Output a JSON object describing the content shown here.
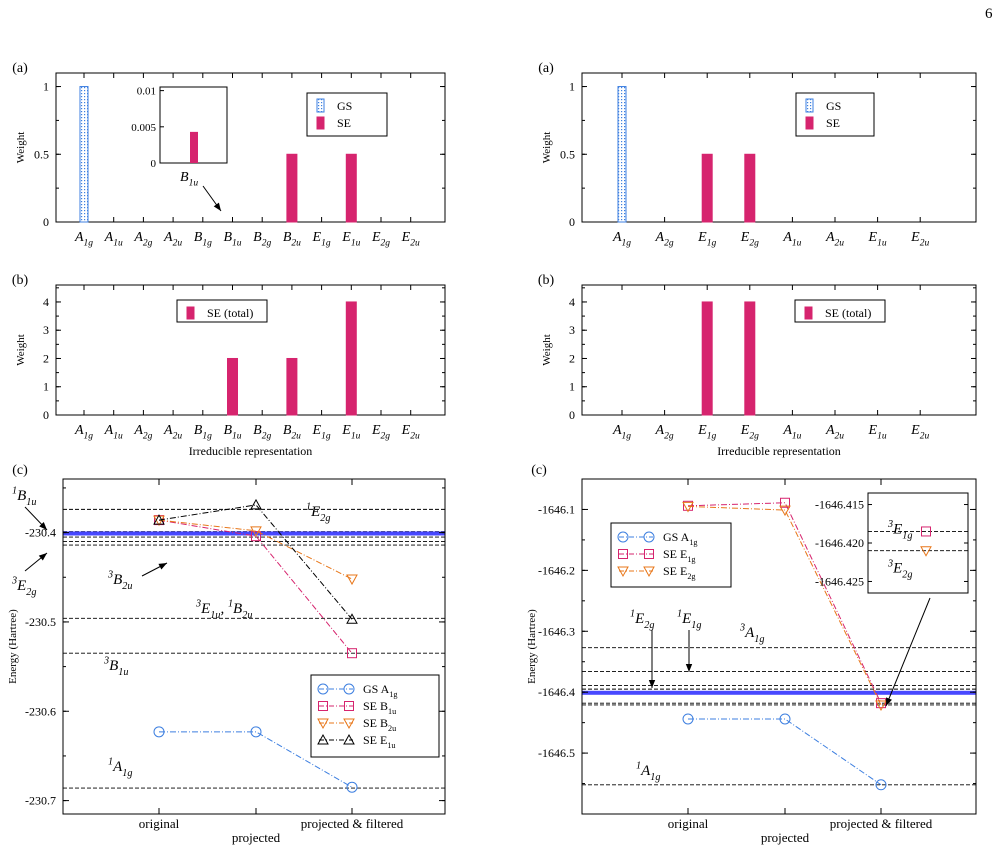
{
  "page": {
    "number": "6"
  },
  "colors": {
    "gs": "#3d7fe0",
    "gs_fill": "#cfe0f8",
    "se": "#d6246e",
    "orange": "#e8771a",
    "black": "#000000",
    "line": "#1a1aff"
  },
  "chart_data": [
    {
      "panel": "left-a",
      "type": "bar",
      "label": "(a)",
      "ylabel": "Weight",
      "categories": [
        "A_{1g}",
        "A_{1u}",
        "A_{2g}",
        "A_{2u}",
        "B_{1g}",
        "B_{1u}",
        "B_{2g}",
        "B_{2u}",
        "E_{1g}",
        "E_{1u}",
        "E_{2g}",
        "E_{2u}"
      ],
      "ylim": [
        0,
        1.1
      ],
      "yticks": [
        "0",
        "0.5",
        "1"
      ],
      "series": [
        {
          "name": "GS",
          "values": [
            1,
            0,
            0,
            0,
            0,
            0.004,
            0,
            0,
            0,
            0,
            0,
            0
          ]
        },
        {
          "name": "SE",
          "values": [
            0,
            0,
            0,
            0,
            0,
            0.004,
            0,
            0.5,
            0,
            0.5,
            0,
            0
          ]
        }
      ],
      "legend": "top-right",
      "inset": {
        "label": "B_{1u}",
        "ylim": [
          0,
          0.01
        ],
        "yticks": [
          "0",
          "0.005",
          "0.01"
        ],
        "value": 0.0043
      }
    },
    {
      "panel": "left-b",
      "type": "bar",
      "label": "(b)",
      "ylabel": "Weight",
      "xlabel": "Irreducible representation",
      "categories": [
        "A_{1g}",
        "A_{1u}",
        "A_{2g}",
        "A_{2u}",
        "B_{1g}",
        "B_{1u}",
        "B_{2g}",
        "B_{2u}",
        "E_{1g}",
        "E_{1u}",
        "E_{2g}",
        "E_{2u}"
      ],
      "ylim": [
        0,
        4.6
      ],
      "yticks": [
        "0",
        "1",
        "2",
        "3",
        "4"
      ],
      "series": [
        {
          "name": "SE (total)",
          "values": [
            0,
            0,
            0,
            0,
            0,
            2,
            0,
            2,
            0,
            4,
            0,
            0
          ]
        }
      ],
      "legend": "top-center"
    },
    {
      "panel": "left-c",
      "type": "line",
      "label": "(c)",
      "ylabel": "Energy (Hartree)",
      "categories": [
        "original",
        "projected",
        "projected & filtered"
      ],
      "ylim": [
        -230.715,
        -230.34
      ],
      "yticks": [
        "-230.4",
        "-230.5",
        "-230.6",
        "-230.7"
      ],
      "series": [
        {
          "name": "GS A_{1g}",
          "values": [
            -230.623,
            -230.623,
            -230.685
          ]
        },
        {
          "name": "SE B_{1u}",
          "values": [
            -230.386,
            -230.404,
            -230.535
          ]
        },
        {
          "name": "SE B_{2u}",
          "values": [
            -230.386,
            -230.398,
            -230.452
          ]
        },
        {
          "name": "SE E_{1u}",
          "values": [
            -230.386,
            -230.369,
            -230.497
          ]
        }
      ],
      "hlines": [
        -230.374,
        -230.399,
        -230.405,
        -230.41,
        -230.414,
        -230.496,
        -230.535,
        -230.686
      ],
      "thick_hline": -230.401,
      "level_labels": [
        "^{1}B_{1u}",
        "^{1}E_{2g}",
        "^{3}E_{2g}",
        "^{3}B_{2u}",
        "^{3}E_{1u}, ^{1}B_{2u}",
        "^{3}B_{1u}",
        "^{1}A_{1g}"
      ],
      "legend": "bottom-right"
    },
    {
      "panel": "right-a",
      "type": "bar",
      "label": "(a)",
      "ylabel": "Weight",
      "categories": [
        "A_{1g}",
        "A_{2g}",
        "E_{1g}",
        "E_{2g}",
        "A_{1u}",
        "A_{2u}",
        "E_{1u}",
        "E_{2u}"
      ],
      "ylim": [
        0,
        1.1
      ],
      "yticks": [
        "0",
        "0.5",
        "1"
      ],
      "series": [
        {
          "name": "GS",
          "values": [
            1,
            0,
            0,
            0,
            0,
            0,
            0,
            0
          ]
        },
        {
          "name": "SE",
          "values": [
            0,
            0,
            0.5,
            0.5,
            0,
            0,
            0,
            0
          ]
        }
      ],
      "legend": "top-right"
    },
    {
      "panel": "right-b",
      "type": "bar",
      "label": "(b)",
      "ylabel": "Weight",
      "xlabel": "Irreducible representation",
      "categories": [
        "A_{1g}",
        "A_{2g}",
        "E_{1g}",
        "E_{2g}",
        "A_{1u}",
        "A_{2u}",
        "E_{1u}",
        "E_{2u}"
      ],
      "ylim": [
        0,
        4.6
      ],
      "yticks": [
        "0",
        "1",
        "2",
        "3",
        "4"
      ],
      "series": [
        {
          "name": "SE (total)",
          "values": [
            0,
            0,
            4,
            4,
            0,
            0,
            0,
            0
          ]
        }
      ],
      "legend": "top-right"
    },
    {
      "panel": "right-c",
      "type": "line",
      "label": "(c)",
      "ylabel": "Energy (Hartree)",
      "categories": [
        "original",
        "projected",
        "projected & filtered"
      ],
      "ylim": [
        -1646.6,
        -1646.05
      ],
      "yticks": [
        "-1646.1",
        "-1646.2",
        "-1646.3",
        "-1646.4",
        "-1646.5"
      ],
      "series": [
        {
          "name": "GS A_{1g}",
          "values": [
            -1646.444,
            -1646.444,
            -1646.552
          ]
        },
        {
          "name": "SE E_{1g}",
          "values": [
            -1646.094,
            -1646.089,
            -1646.418
          ]
        },
        {
          "name": "SE E_{2g}",
          "values": [
            -1646.095,
            -1646.101,
            -1646.421
          ]
        }
      ],
      "hlines": [
        -1646.327,
        -1646.366,
        -1646.389,
        -1646.395,
        -1646.418,
        -1646.421,
        -1646.552
      ],
      "thick_hline": -1646.401,
      "level_labels": [
        "^{1}E_{2g}",
        "^{1}E_{1g}",
        "^{3}A_{1g}",
        "^{1}A_{1g}"
      ],
      "legend": "top-left",
      "inset": {
        "yticks": [
          "-1646.415",
          "-1646.420",
          "-1646.425"
        ],
        "ylim": [
          -1646.4265,
          -1646.4135
        ],
        "labels": [
          "^{3}E_{1g}",
          "^{3}E_{2g}"
        ],
        "values": [
          -1646.4185,
          -1646.421
        ]
      }
    }
  ]
}
